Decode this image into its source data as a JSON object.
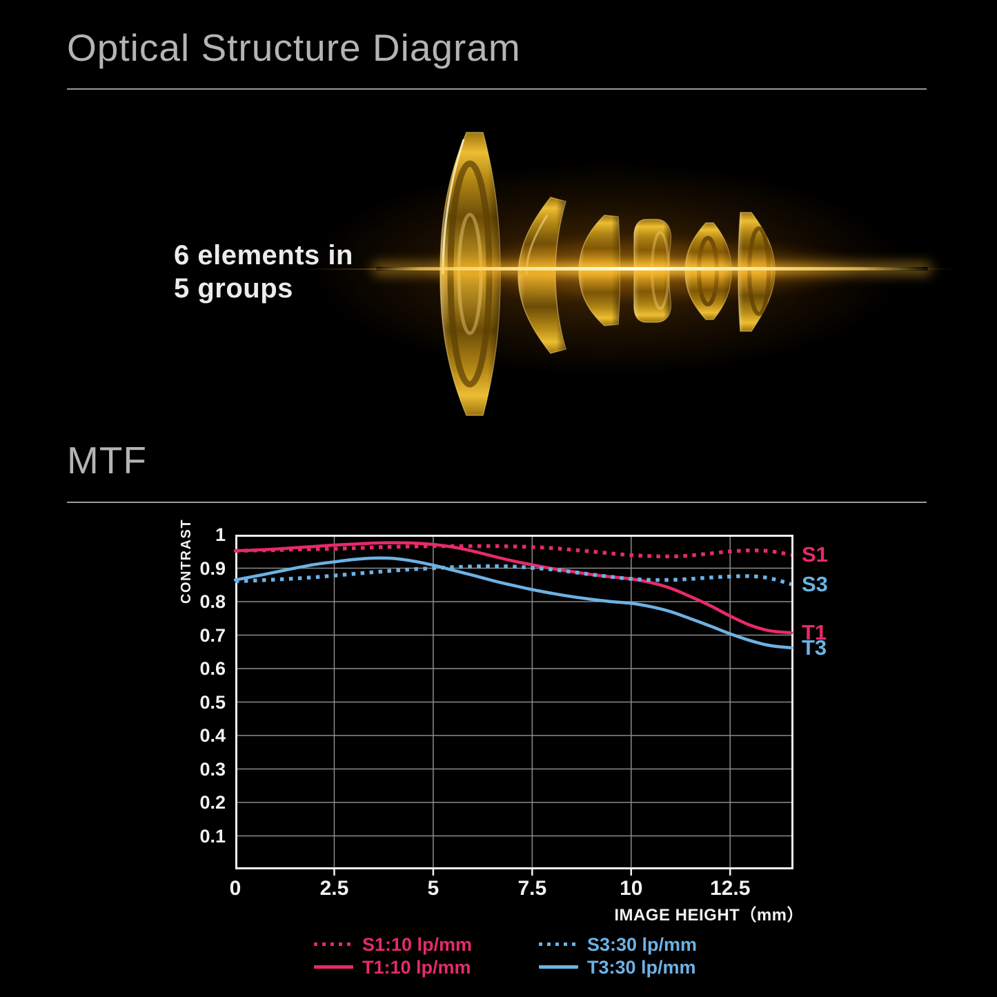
{
  "page": {
    "background": "#000000"
  },
  "optical_section": {
    "title": "Optical Structure Diagram",
    "caption": {
      "line1": "6 elements in",
      "line2": "5 groups"
    },
    "colors": {
      "gold_bright": "#edbd33",
      "gold_mid": "#b68a16",
      "gold_dark": "#6b4c06",
      "flare_core": "#fffbe8",
      "flare_glow": "#ffb01a"
    }
  },
  "mtf_section": {
    "title": "MTF"
  },
  "chart_data": {
    "type": "line",
    "title": "MTF",
    "xlabel": "IMAGE HEIGHT（mm）",
    "ylabel": "CONTRAST",
    "xlim": [
      0,
      14.1
    ],
    "ylim": [
      0,
      1
    ],
    "x_ticks": [
      0,
      2.5,
      5,
      7.5,
      10,
      12.5
    ],
    "y_ticks": [
      1,
      0.9,
      0.8,
      0.7,
      0.6,
      0.5,
      0.4,
      0.3,
      0.2,
      0.1
    ],
    "grid": true,
    "grid_color": "#8c8c8c",
    "border_color": "#f2f2f2",
    "legend_position": "bottom",
    "x": [
      0,
      0.5,
      1,
      1.5,
      2,
      2.5,
      3,
      3.5,
      4,
      4.5,
      5,
      5.5,
      6,
      6.5,
      7,
      7.5,
      8,
      8.5,
      9,
      9.5,
      10,
      10.5,
      11,
      11.5,
      12,
      12.5,
      13,
      13.5,
      14.05
    ],
    "series": [
      {
        "name": "S1:10 lp/mm",
        "end_label": "S1",
        "color": "#e62a6b",
        "style": "dotted",
        "values": [
          0.952,
          0.953,
          0.954,
          0.956,
          0.957,
          0.958,
          0.96,
          0.962,
          0.964,
          0.965,
          0.966,
          0.966,
          0.966,
          0.966,
          0.965,
          0.963,
          0.96,
          0.955,
          0.95,
          0.944,
          0.939,
          0.936,
          0.935,
          0.938,
          0.944,
          0.95,
          0.953,
          0.951,
          0.94
        ]
      },
      {
        "name": "T1:10 lp/mm",
        "end_label": "T1",
        "color": "#e62a6b",
        "style": "solid",
        "values": [
          0.952,
          0.954,
          0.957,
          0.961,
          0.965,
          0.969,
          0.972,
          0.975,
          0.976,
          0.975,
          0.971,
          0.963,
          0.951,
          0.936,
          0.922,
          0.91,
          0.899,
          0.89,
          0.881,
          0.874,
          0.868,
          0.857,
          0.84,
          0.815,
          0.788,
          0.757,
          0.73,
          0.713,
          0.707
        ]
      },
      {
        "name": "S3:30 lp/mm",
        "end_label": "S3",
        "color": "#6cb2e4",
        "style": "dotted",
        "values": [
          0.861,
          0.863,
          0.866,
          0.869,
          0.873,
          0.878,
          0.883,
          0.888,
          0.893,
          0.897,
          0.9,
          0.903,
          0.905,
          0.906,
          0.905,
          0.901,
          0.896,
          0.889,
          0.881,
          0.874,
          0.868,
          0.865,
          0.865,
          0.868,
          0.872,
          0.875,
          0.876,
          0.87,
          0.852
        ]
      },
      {
        "name": "T3:30 lp/mm",
        "end_label": "T3",
        "color": "#6cb2e4",
        "style": "solid",
        "values": [
          0.865,
          0.876,
          0.888,
          0.9,
          0.911,
          0.919,
          0.926,
          0.93,
          0.929,
          0.921,
          0.909,
          0.894,
          0.879,
          0.863,
          0.849,
          0.836,
          0.825,
          0.815,
          0.807,
          0.8,
          0.795,
          0.785,
          0.77,
          0.749,
          0.727,
          0.704,
          0.684,
          0.669,
          0.662
        ]
      }
    ],
    "legend": [
      {
        "label": "S1:10 lp/mm",
        "color": "#e62a6b",
        "style": "dotted"
      },
      {
        "label": "T1:10 lp/mm",
        "color": "#e62a6b",
        "style": "solid"
      },
      {
        "label": "S3:30 lp/mm",
        "color": "#6cb2e4",
        "style": "dotted"
      },
      {
        "label": "T3:30 lp/mm",
        "color": "#6cb2e4",
        "style": "solid"
      }
    ]
  }
}
